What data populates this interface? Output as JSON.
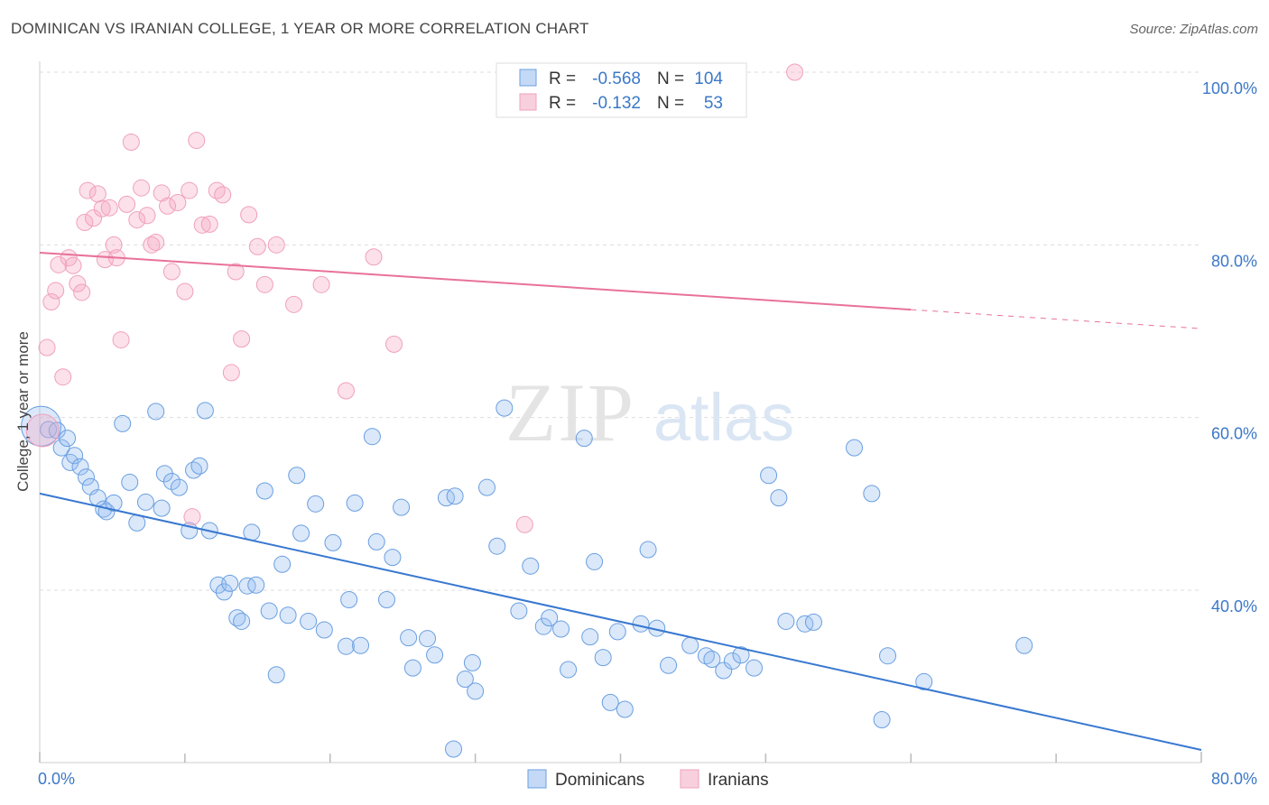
{
  "title": "DOMINICAN VS IRANIAN COLLEGE, 1 YEAR OR MORE CORRELATION CHART",
  "source": "Source: ZipAtlas.com",
  "watermark": {
    "zip": "ZIP",
    "atlas": "atlas"
  },
  "chart_data": {
    "type": "scatter",
    "ylabel": "College, 1 year or more",
    "xlim": [
      0,
      80
    ],
    "ylim": [
      20,
      100
    ],
    "x_tick_labels": [
      "0.0%",
      "80.0%"
    ],
    "y_ticks": [
      {
        "value": 100,
        "label": "100.0%"
      },
      {
        "value": 80,
        "label": "80.0%"
      },
      {
        "value": 60,
        "label": "60.0%"
      },
      {
        "value": 40,
        "label": "40.0%"
      }
    ],
    "grid": true,
    "legend_position": "top-center",
    "stats": [
      {
        "r_label": "R =",
        "r_value": "-0.568",
        "n_label": "N =",
        "n_value": "104"
      },
      {
        "r_label": "R =",
        "r_value": "-0.132",
        "n_label": "N =",
        "n_value": "53"
      }
    ],
    "series": [
      {
        "name": "Dominicans",
        "color": "#6a9fe0",
        "line_color": "#3878d0",
        "trend": {
          "x0": 0,
          "y0": 51.2,
          "x1": 80,
          "y1": 21.5,
          "solid_until": 80
        },
        "points": [
          [
            0.1,
            59.0
          ],
          [
            0.6,
            58.6
          ],
          [
            1.2,
            58.5
          ],
          [
            1.5,
            56.5
          ],
          [
            1.9,
            57.6
          ],
          [
            2.1,
            54.8
          ],
          [
            2.4,
            55.6
          ],
          [
            2.8,
            54.3
          ],
          [
            3.2,
            53.1
          ],
          [
            3.5,
            52.0
          ],
          [
            4.0,
            50.7
          ],
          [
            4.4,
            49.4
          ],
          [
            4.6,
            49.1
          ],
          [
            5.1,
            50.1
          ],
          [
            5.7,
            59.3
          ],
          [
            6.2,
            52.5
          ],
          [
            6.7,
            47.8
          ],
          [
            7.3,
            50.2
          ],
          [
            8.0,
            60.7
          ],
          [
            8.4,
            49.5
          ],
          [
            8.6,
            53.5
          ],
          [
            9.1,
            52.6
          ],
          [
            9.6,
            51.9
          ],
          [
            10.3,
            46.9
          ],
          [
            10.6,
            53.9
          ],
          [
            11.0,
            54.4
          ],
          [
            11.4,
            60.8
          ],
          [
            11.7,
            46.9
          ],
          [
            12.3,
            40.6
          ],
          [
            12.7,
            39.8
          ],
          [
            13.1,
            40.8
          ],
          [
            13.6,
            36.8
          ],
          [
            13.9,
            36.4
          ],
          [
            14.3,
            40.5
          ],
          [
            14.6,
            46.7
          ],
          [
            14.9,
            40.6
          ],
          [
            15.5,
            51.5
          ],
          [
            15.8,
            37.6
          ],
          [
            16.3,
            30.2
          ],
          [
            16.7,
            43.0
          ],
          [
            17.1,
            37.1
          ],
          [
            17.7,
            53.3
          ],
          [
            18.0,
            46.6
          ],
          [
            18.5,
            36.4
          ],
          [
            19.0,
            50.0
          ],
          [
            19.6,
            35.4
          ],
          [
            20.2,
            45.5
          ],
          [
            21.1,
            33.5
          ],
          [
            21.7,
            50.1
          ],
          [
            22.1,
            33.6
          ],
          [
            22.9,
            57.8
          ],
          [
            23.2,
            45.6
          ],
          [
            23.9,
            38.9
          ],
          [
            24.3,
            43.8
          ],
          [
            24.9,
            49.6
          ],
          [
            25.4,
            34.5
          ],
          [
            25.7,
            31.0
          ],
          [
            26.7,
            34.4
          ],
          [
            27.2,
            32.5
          ],
          [
            28.0,
            50.7
          ],
          [
            28.6,
            50.9
          ],
          [
            29.3,
            29.7
          ],
          [
            29.8,
            31.6
          ],
          [
            30.0,
            28.3
          ],
          [
            30.8,
            51.9
          ],
          [
            31.5,
            45.1
          ],
          [
            32.0,
            61.1
          ],
          [
            33.0,
            37.6
          ],
          [
            33.8,
            42.8
          ],
          [
            34.7,
            35.8
          ],
          [
            35.1,
            36.8
          ],
          [
            35.9,
            35.5
          ],
          [
            36.4,
            30.8
          ],
          [
            37.5,
            57.6
          ],
          [
            37.9,
            34.6
          ],
          [
            38.2,
            43.3
          ],
          [
            38.8,
            32.2
          ],
          [
            39.3,
            27.0
          ],
          [
            39.8,
            35.2
          ],
          [
            41.4,
            36.1
          ],
          [
            41.9,
            44.7
          ],
          [
            42.5,
            35.6
          ],
          [
            43.3,
            31.3
          ],
          [
            44.8,
            33.6
          ],
          [
            45.9,
            32.4
          ],
          [
            46.3,
            32.0
          ],
          [
            47.1,
            30.7
          ],
          [
            47.7,
            31.8
          ],
          [
            48.3,
            32.5
          ],
          [
            49.2,
            31.0
          ],
          [
            50.2,
            53.3
          ],
          [
            50.9,
            50.7
          ],
          [
            51.4,
            36.4
          ],
          [
            52.7,
            36.1
          ],
          [
            53.3,
            36.3
          ],
          [
            56.1,
            56.5
          ],
          [
            57.3,
            51.2
          ],
          [
            58.0,
            25.0
          ],
          [
            58.4,
            32.4
          ],
          [
            60.9,
            29.4
          ],
          [
            67.8,
            33.6
          ],
          [
            40.3,
            26.2
          ],
          [
            28.5,
            21.6
          ],
          [
            21.3,
            38.9
          ]
        ]
      },
      {
        "name": "Iranians",
        "color": "#f0a0bc",
        "line_color": "#e8729a",
        "trend": {
          "x0": 0,
          "y0": 79.1,
          "x1": 80,
          "y1": 70.3,
          "solid_until": 60
        },
        "points": [
          [
            0.2,
            58.5
          ],
          [
            0.5,
            68.1
          ],
          [
            0.8,
            73.4
          ],
          [
            1.1,
            74.7
          ],
          [
            1.3,
            77.7
          ],
          [
            1.6,
            64.7
          ],
          [
            2.0,
            78.5
          ],
          [
            2.3,
            77.6
          ],
          [
            2.6,
            75.5
          ],
          [
            2.9,
            74.5
          ],
          [
            3.1,
            82.6
          ],
          [
            3.3,
            86.3
          ],
          [
            3.7,
            83.1
          ],
          [
            4.0,
            85.9
          ],
          [
            4.3,
            84.2
          ],
          [
            4.5,
            78.3
          ],
          [
            4.8,
            84.3
          ],
          [
            5.1,
            80.0
          ],
          [
            5.3,
            78.5
          ],
          [
            5.6,
            69.0
          ],
          [
            6.0,
            84.7
          ],
          [
            6.3,
            91.9
          ],
          [
            6.7,
            82.9
          ],
          [
            7.0,
            86.6
          ],
          [
            7.4,
            83.4
          ],
          [
            7.7,
            80.0
          ],
          [
            8.0,
            80.3
          ],
          [
            8.4,
            86.0
          ],
          [
            8.8,
            84.5
          ],
          [
            9.1,
            76.9
          ],
          [
            9.5,
            84.9
          ],
          [
            10.0,
            74.6
          ],
          [
            10.3,
            86.3
          ],
          [
            10.5,
            48.5
          ],
          [
            10.8,
            92.1
          ],
          [
            11.2,
            82.3
          ],
          [
            11.7,
            82.4
          ],
          [
            12.2,
            86.3
          ],
          [
            12.6,
            85.8
          ],
          [
            13.2,
            65.2
          ],
          [
            13.5,
            76.9
          ],
          [
            13.9,
            69.1
          ],
          [
            14.4,
            83.5
          ],
          [
            15.0,
            79.8
          ],
          [
            15.5,
            75.4
          ],
          [
            16.3,
            80.0
          ],
          [
            17.5,
            73.1
          ],
          [
            19.4,
            75.4
          ],
          [
            21.1,
            63.1
          ],
          [
            23.0,
            78.6
          ],
          [
            24.4,
            68.5
          ],
          [
            33.4,
            47.6
          ],
          [
            52.0,
            100.0
          ]
        ]
      }
    ]
  }
}
